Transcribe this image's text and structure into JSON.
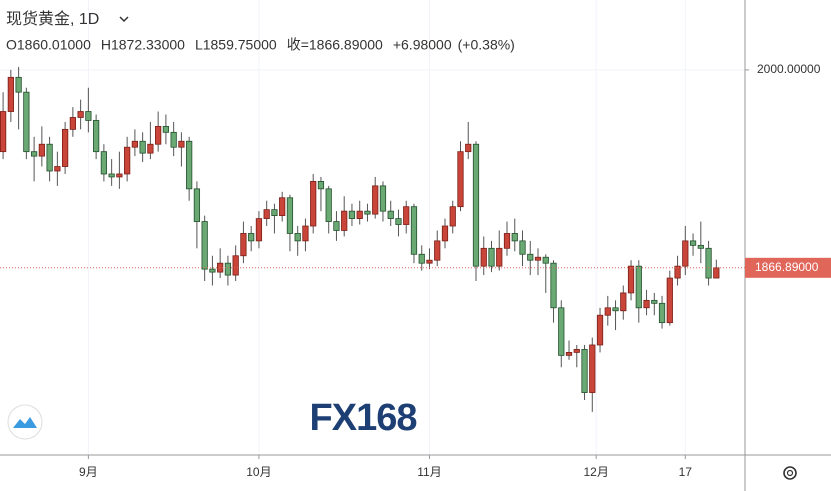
{
  "chart_data": {
    "type": "candlestick",
    "title": "现货黄金, 1D",
    "ohlc_header": [
      "O1860.01000",
      "H1872.33000",
      "L1859.75000",
      "收=1866.89000",
      "+6.98000",
      "(+0.38%)"
    ],
    "watermark": "FX168",
    "up_color": "#c9453a",
    "down_color": "#6aa874",
    "open": [
      1945,
      1972,
      1995,
      1985,
      1945,
      1942,
      1950,
      1932,
      1935,
      1960,
      1968,
      1972,
      1966,
      1945,
      1930,
      1928,
      1930,
      1948,
      1952,
      1944,
      1950,
      1962,
      1958,
      1948,
      1952,
      1920,
      1898,
      1866,
      1864,
      1870,
      1862,
      1875,
      1890,
      1885,
      1900,
      1906,
      1902,
      1914,
      1890,
      1885,
      1895,
      1925,
      1920,
      1898,
      1892,
      1905,
      1900,
      1905,
      1903,
      1922,
      1905,
      1900,
      1896,
      1908,
      1876,
      1870,
      1872,
      1885,
      1895,
      1908,
      1945,
      1950,
      1868,
      1880,
      1868,
      1880,
      1890,
      1885,
      1876,
      1872,
      1874,
      1870,
      1840,
      1808,
      1810,
      1812,
      1783,
      1815,
      1835,
      1840,
      1838,
      1850,
      1868,
      1840,
      1845,
      1843,
      1830,
      1860,
      1868,
      1885,
      1882,
      1880,
      1860.01
    ],
    "high": [
      1985,
      2000,
      2002,
      1988,
      1955,
      1962,
      1955,
      1945,
      1965,
      1975,
      1980,
      1988,
      1970,
      1950,
      1940,
      1945,
      1955,
      1960,
      1958,
      1965,
      1972,
      1970,
      1965,
      1958,
      1955,
      1925,
      1902,
      1875,
      1880,
      1875,
      1882,
      1898,
      1895,
      1905,
      1912,
      1910,
      1918,
      1916,
      1895,
      1900,
      1930,
      1928,
      1922,
      1905,
      1915,
      1910,
      1912,
      1910,
      1928,
      1925,
      1912,
      1906,
      1912,
      1910,
      1882,
      1880,
      1892,
      1900,
      1912,
      1952,
      1965,
      1952,
      1888,
      1885,
      1892,
      1898,
      1900,
      1892,
      1885,
      1880,
      1876,
      1872,
      1845,
      1818,
      1815,
      1815,
      1820,
      1840,
      1848,
      1845,
      1855,
      1872,
      1872,
      1852,
      1850,
      1848,
      1865,
      1875,
      1895,
      1890,
      1898,
      1885,
      1872.33
    ],
    "low": [
      1940,
      1965,
      1960,
      1940,
      1925,
      1935,
      1925,
      1922,
      1930,
      1955,
      1960,
      1958,
      1940,
      1925,
      1922,
      1920,
      1925,
      1942,
      1938,
      1940,
      1945,
      1950,
      1942,
      1935,
      1912,
      1880,
      1858,
      1855,
      1860,
      1855,
      1858,
      1870,
      1878,
      1880,
      1895,
      1890,
      1898,
      1878,
      1875,
      1878,
      1890,
      1905,
      1890,
      1885,
      1888,
      1895,
      1896,
      1898,
      1900,
      1898,
      1895,
      1888,
      1890,
      1870,
      1865,
      1866,
      1868,
      1880,
      1890,
      1905,
      1940,
      1858,
      1862,
      1864,
      1865,
      1875,
      1878,
      1868,
      1862,
      1862,
      1850,
      1830,
      1800,
      1805,
      1800,
      1778,
      1770,
      1810,
      1828,
      1825,
      1832,
      1845,
      1830,
      1835,
      1835,
      1826,
      1828,
      1855,
      1862,
      1875,
      1870,
      1855,
      1859.75
    ],
    "close": [
      1972,
      1995,
      1985,
      1945,
      1942,
      1950,
      1932,
      1935,
      1960,
      1968,
      1972,
      1966,
      1945,
      1930,
      1928,
      1930,
      1948,
      1952,
      1944,
      1950,
      1962,
      1958,
      1948,
      1952,
      1920,
      1898,
      1866,
      1864,
      1870,
      1862,
      1875,
      1890,
      1885,
      1900,
      1906,
      1902,
      1914,
      1890,
      1885,
      1895,
      1925,
      1920,
      1898,
      1892,
      1905,
      1900,
      1905,
      1903,
      1922,
      1905,
      1900,
      1896,
      1908,
      1876,
      1870,
      1872,
      1885,
      1895,
      1908,
      1945,
      1950,
      1868,
      1880,
      1868,
      1880,
      1890,
      1885,
      1876,
      1872,
      1874,
      1870,
      1840,
      1808,
      1810,
      1812,
      1783,
      1815,
      1835,
      1840,
      1838,
      1850,
      1868,
      1840,
      1845,
      1843,
      1830,
      1860,
      1868,
      1885,
      1882,
      1880,
      1860,
      1866.89
    ],
    "xlim": [
      -0.4,
      95.7
    ],
    "xticks": [
      {
        "value": 11,
        "label": "9月"
      },
      {
        "value": 33,
        "label": "10月"
      },
      {
        "value": 55,
        "label": "11月"
      },
      {
        "value": 76.5,
        "label": "12月"
      },
      {
        "value": 88,
        "label": "17"
      }
    ],
    "ylim": [
      1741,
      2047
    ],
    "yticks": [
      {
        "value": 2000,
        "label": "2000.00000"
      }
    ],
    "last_price": {
      "value": 1866.89,
      "label": "1866.89000"
    },
    "grid": true
  }
}
